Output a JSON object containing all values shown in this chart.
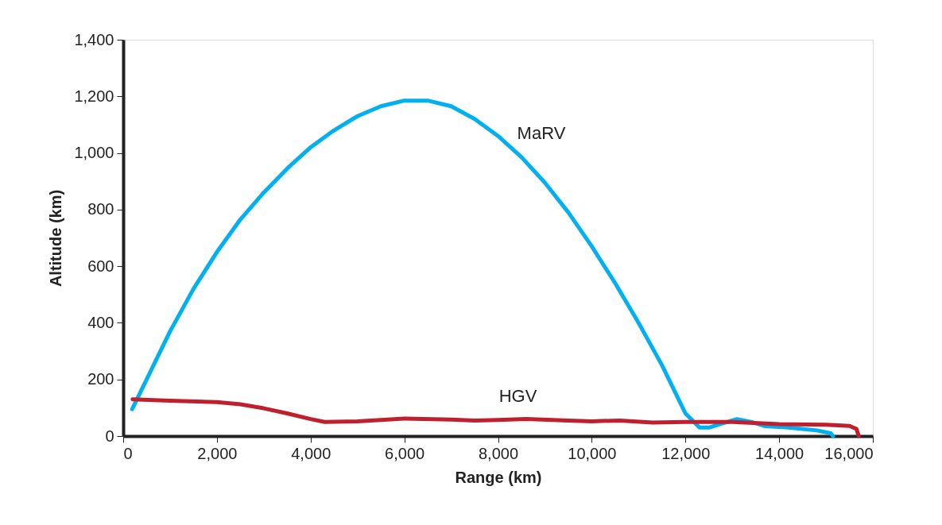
{
  "chart_data": {
    "type": "line",
    "xlabel": "Range (km)",
    "ylabel": "Altitude (km)",
    "xlim": [
      0,
      16000
    ],
    "xticks": [
      {
        "value": 0,
        "label": "0"
      },
      {
        "value": 2000,
        "label": "2,000"
      },
      {
        "value": 4000,
        "label": "4,000"
      },
      {
        "value": 6000,
        "label": "6,000"
      },
      {
        "value": 8000,
        "label": "8,000"
      },
      {
        "value": 10000,
        "label": "10,000"
      },
      {
        "value": 12000,
        "label": "12,000"
      },
      {
        "value": 14000,
        "label": "14,000"
      },
      {
        "value": 16000,
        "label": "16,000"
      }
    ],
    "ylim": [
      0,
      1400
    ],
    "yticks": [
      {
        "value": 0,
        "label": "0"
      },
      {
        "value": 200,
        "label": "200"
      },
      {
        "value": 400,
        "label": "400"
      },
      {
        "value": 600,
        "label": "600"
      },
      {
        "value": 800,
        "label": "800"
      },
      {
        "value": 1000,
        "label": "1,000"
      },
      {
        "value": 1200,
        "label": "1,200"
      },
      {
        "value": 1400,
        "label": "1,400"
      }
    ],
    "grid": false,
    "marker": "none",
    "line_style": "solid",
    "series": [
      {
        "name": "MaRV",
        "color": "#00b0f0",
        "x": [
          190,
          500,
          1000,
          1500,
          2000,
          2500,
          3000,
          3500,
          4000,
          4500,
          5000,
          5500,
          6000,
          6500,
          7000,
          7500,
          8000,
          8500,
          9000,
          9500,
          10000,
          10500,
          11000,
          11500,
          12000,
          12300,
          12500,
          12800,
          13100,
          13400,
          13700,
          14200,
          14800,
          15100,
          15150
        ],
        "values": [
          95,
          200,
          370,
          520,
          650,
          765,
          860,
          945,
          1020,
          1080,
          1130,
          1165,
          1185,
          1185,
          1165,
          1120,
          1060,
          985,
          895,
          790,
          670,
          540,
          400,
          250,
          80,
          30,
          30,
          45,
          60,
          50,
          35,
          30,
          20,
          10,
          0
        ]
      },
      {
        "name": "HGV",
        "color": "#c0202e",
        "x": [
          200,
          1000,
          2000,
          2500,
          3000,
          3500,
          4000,
          4300,
          5000,
          6000,
          7000,
          7500,
          8000,
          8600,
          9500,
          10000,
          10600,
          11300,
          12000,
          13000,
          14000,
          15000,
          15500,
          15650,
          15700
        ],
        "values": [
          130,
          125,
          120,
          112,
          98,
          80,
          60,
          50,
          52,
          62,
          58,
          55,
          57,
          60,
          55,
          52,
          55,
          48,
          50,
          50,
          42,
          40,
          36,
          25,
          0
        ]
      }
    ]
  }
}
